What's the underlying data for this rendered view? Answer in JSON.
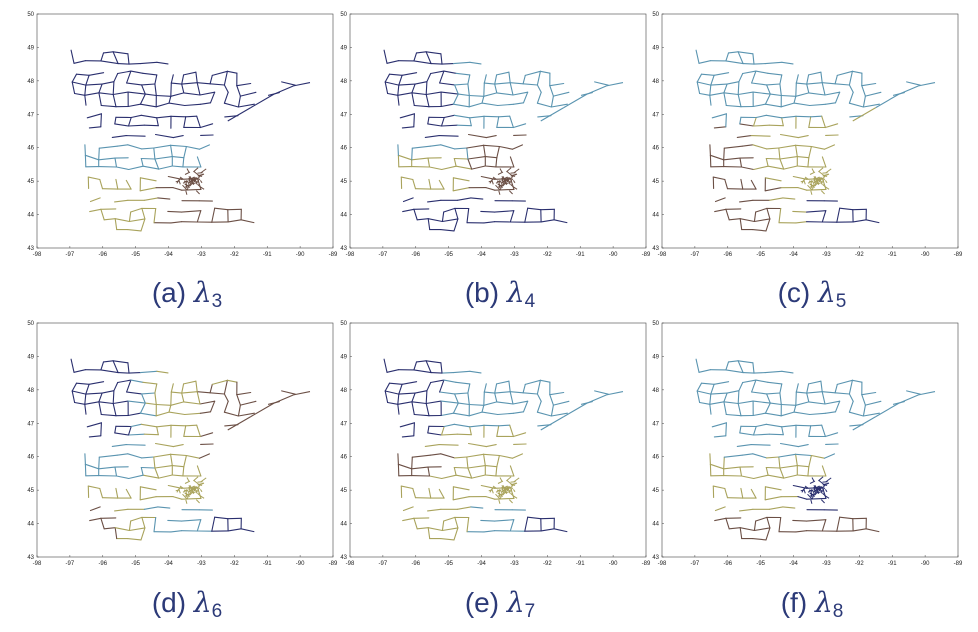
{
  "chart_data": [
    {
      "type": "map",
      "caption_prefix": "(a)",
      "subscript": "3",
      "xticks": [
        -98,
        -97,
        -96,
        -95,
        -94,
        -93,
        -92,
        -91,
        -90,
        -89
      ],
      "yticks": [
        43,
        44,
        45,
        46,
        47,
        48,
        49,
        50
      ],
      "xlim": [
        -98,
        -89
      ],
      "ylim": [
        43,
        50
      ],
      "palette": [
        "#2a2f6e",
        "#5a94b0",
        "#a9a35c",
        "#6b4f45"
      ],
      "regions": [
        {
          "color": 0,
          "lat": [
            46.2,
            49.1
          ]
        },
        {
          "color": 1,
          "lat": [
            45.3,
            46.2
          ]
        },
        {
          "color": 2,
          "lat": [
            43.5,
            45.3
          ],
          "lon": [
            -97,
            -94.2
          ]
        },
        {
          "color": 3,
          "lat": [
            43.5,
            45.3
          ],
          "lon": [
            -94.2,
            -91.2
          ]
        }
      ]
    },
    {
      "type": "map",
      "caption_prefix": "(b)",
      "subscript": "4",
      "xticks": [
        -98,
        -97,
        -96,
        -95,
        -94,
        -93,
        -92,
        -91,
        -90,
        -89
      ],
      "yticks": [
        43,
        44,
        45,
        46,
        47,
        48,
        49,
        50
      ],
      "xlim": [
        -98,
        -89
      ],
      "ylim": [
        43,
        50
      ],
      "palette": [
        "#2a2f6e",
        "#5a94b0",
        "#a9a35c",
        "#6b4f45"
      ]
    },
    {
      "type": "map",
      "caption_prefix": "(c)",
      "subscript": "5",
      "xticks": [
        -98,
        -97,
        -96,
        -95,
        -94,
        -93,
        -92,
        -91,
        -90,
        -89
      ],
      "yticks": [
        43,
        44,
        45,
        46,
        47,
        48,
        49,
        50
      ],
      "xlim": [
        -98,
        -89
      ],
      "ylim": [
        43,
        50
      ],
      "palette": [
        "#5a94b0",
        "#6b4f45",
        "#a9a35c",
        "#2a2f6e"
      ]
    },
    {
      "type": "map",
      "caption_prefix": "(d)",
      "subscript": "6",
      "xticks": [
        -98,
        -97,
        -96,
        -95,
        -94,
        -93,
        -92,
        -91,
        -90,
        -89
      ],
      "yticks": [
        43,
        44,
        45,
        46,
        47,
        48,
        49,
        50
      ],
      "xlim": [
        -98,
        -89
      ],
      "ylim": [
        43,
        50
      ],
      "palette": [
        "#2a2f6e",
        "#5a94b0",
        "#a9a35c",
        "#6b4f45"
      ]
    },
    {
      "type": "map",
      "caption_prefix": "(e)",
      "subscript": "7",
      "xticks": [
        -98,
        -97,
        -96,
        -95,
        -94,
        -93,
        -92,
        -91,
        -90,
        -89
      ],
      "yticks": [
        43,
        44,
        45,
        46,
        47,
        48,
        49,
        50
      ],
      "xlim": [
        -98,
        -89
      ],
      "ylim": [
        43,
        50
      ],
      "palette": [
        "#2a2f6e",
        "#5a94b0",
        "#a9a35c",
        "#6b4f45"
      ]
    },
    {
      "type": "map",
      "caption_prefix": "(f)",
      "subscript": "8",
      "xticks": [
        -98,
        -97,
        -96,
        -95,
        -94,
        -93,
        -92,
        -91,
        -90,
        -89
      ],
      "yticks": [
        43,
        44,
        45,
        46,
        47,
        48,
        49,
        50
      ],
      "xlim": [
        -98,
        -89
      ],
      "ylim": [
        43,
        50
      ],
      "palette": [
        "#5a94b0",
        "#a9a35c",
        "#2a2f6e",
        "#6b4f45"
      ]
    }
  ]
}
